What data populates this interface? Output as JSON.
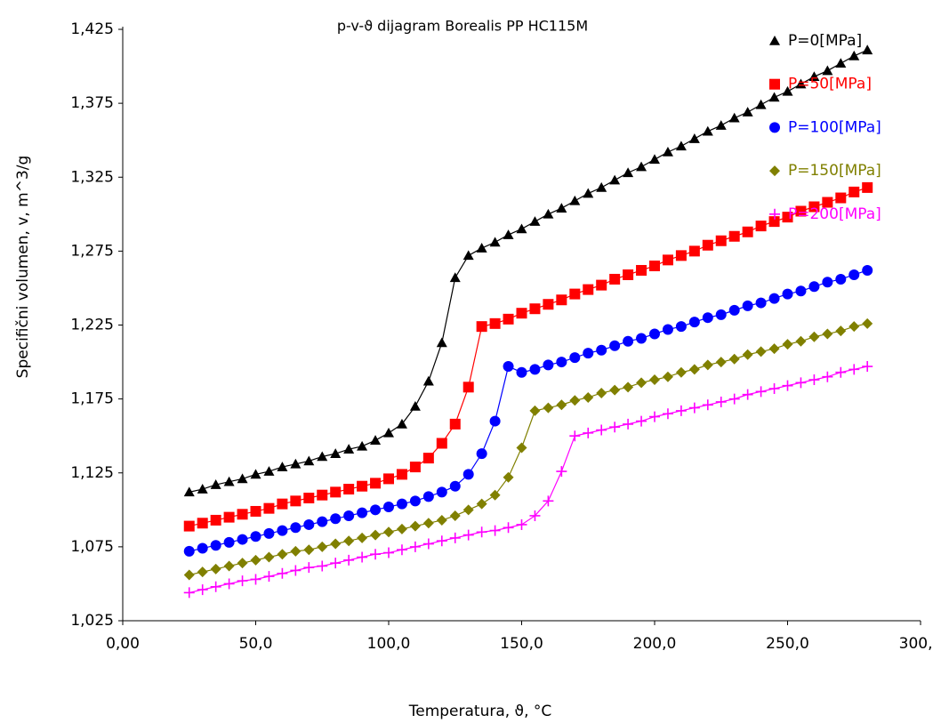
{
  "chart_data": {
    "type": "line",
    "title": "p-v-ϑ  dijagram Borealis PP   HC115M",
    "xlabel": "Temperatura, ϑ, °C",
    "ylabel": "Specifični volumen, v,  m^3/g",
    "x": [
      25,
      30,
      35,
      40,
      45,
      50,
      55,
      60,
      65,
      70,
      75,
      80,
      85,
      90,
      95,
      100,
      105,
      110,
      115,
      120,
      125,
      130,
      135,
      140,
      145,
      150,
      155,
      160,
      165,
      170,
      175,
      180,
      185,
      190,
      195,
      200,
      205,
      210,
      215,
      220,
      225,
      230,
      235,
      240,
      245,
      250,
      255,
      260,
      265,
      270,
      275,
      280
    ],
    "series": [
      {
        "name": "P=0[MPa]",
        "color": "#000000",
        "marker": "triangle",
        "values": [
          1.112,
          1.114,
          1.117,
          1.119,
          1.121,
          1.124,
          1.126,
          1.129,
          1.131,
          1.133,
          1.136,
          1.138,
          1.141,
          1.143,
          1.147,
          1.152,
          1.158,
          1.17,
          1.187,
          1.213,
          1.257,
          1.272,
          1.277,
          1.281,
          1.286,
          1.29,
          1.295,
          1.3,
          1.304,
          1.309,
          1.314,
          1.318,
          1.323,
          1.328,
          1.332,
          1.337,
          1.342,
          1.346,
          1.351,
          1.356,
          1.36,
          1.365,
          1.369,
          1.374,
          1.379,
          1.383,
          1.388,
          1.393,
          1.397,
          1.402,
          1.407,
          1.411
        ]
      },
      {
        "name": "P=50[MPa]",
        "color": "#ff0000",
        "marker": "square",
        "values": [
          1.089,
          1.091,
          1.093,
          1.095,
          1.097,
          1.099,
          1.101,
          1.104,
          1.106,
          1.108,
          1.11,
          1.112,
          1.114,
          1.116,
          1.118,
          1.121,
          1.124,
          1.129,
          1.135,
          1.145,
          1.158,
          1.183,
          1.224,
          1.226,
          1.229,
          1.233,
          1.236,
          1.239,
          1.242,
          1.246,
          1.249,
          1.252,
          1.256,
          1.259,
          1.262,
          1.265,
          1.269,
          1.272,
          1.275,
          1.279,
          1.282,
          1.285,
          1.288,
          1.292,
          1.295,
          1.298,
          1.302,
          1.305,
          1.308,
          1.311,
          1.315,
          1.318
        ]
      },
      {
        "name": "P=100[MPa]",
        "color": "#0000ff",
        "marker": "circle",
        "values": [
          1.072,
          1.074,
          1.076,
          1.078,
          1.08,
          1.082,
          1.084,
          1.086,
          1.088,
          1.09,
          1.092,
          1.094,
          1.096,
          1.098,
          1.1,
          1.102,
          1.104,
          1.106,
          1.109,
          1.112,
          1.116,
          1.124,
          1.138,
          1.16,
          1.197,
          1.193,
          1.195,
          1.198,
          1.2,
          1.203,
          1.206,
          1.208,
          1.211,
          1.214,
          1.216,
          1.219,
          1.222,
          1.224,
          1.227,
          1.23,
          1.232,
          1.235,
          1.238,
          1.24,
          1.243,
          1.246,
          1.248,
          1.251,
          1.254,
          1.256,
          1.259,
          1.262
        ]
      },
      {
        "name": "P=150[MPa]",
        "color": "#808000",
        "marker": "diamond",
        "values": [
          1.056,
          1.058,
          1.06,
          1.062,
          1.064,
          1.066,
          1.068,
          1.07,
          1.072,
          1.073,
          1.075,
          1.077,
          1.079,
          1.081,
          1.083,
          1.085,
          1.087,
          1.089,
          1.091,
          1.093,
          1.096,
          1.1,
          1.104,
          1.11,
          1.122,
          1.142,
          1.167,
          1.169,
          1.171,
          1.174,
          1.176,
          1.179,
          1.181,
          1.183,
          1.186,
          1.188,
          1.19,
          1.193,
          1.195,
          1.198,
          1.2,
          1.202,
          1.205,
          1.207,
          1.209,
          1.212,
          1.214,
          1.217,
          1.219,
          1.221,
          1.224,
          1.226
        ]
      },
      {
        "name": "P=200[MPa]",
        "color": "#ff00ff",
        "marker": "plus",
        "values": [
          1.044,
          1.046,
          1.048,
          1.05,
          1.052,
          1.053,
          1.055,
          1.057,
          1.059,
          1.061,
          1.062,
          1.064,
          1.066,
          1.068,
          1.07,
          1.071,
          1.073,
          1.075,
          1.077,
          1.079,
          1.081,
          1.083,
          1.085,
          1.086,
          1.088,
          1.09,
          1.096,
          1.106,
          1.126,
          1.15,
          1.152,
          1.154,
          1.156,
          1.158,
          1.16,
          1.163,
          1.165,
          1.167,
          1.169,
          1.171,
          1.173,
          1.175,
          1.178,
          1.18,
          1.182,
          1.184,
          1.186,
          1.188,
          1.19,
          1.193,
          1.195,
          1.197
        ]
      }
    ],
    "xlim": [
      0,
      300
    ],
    "xticks": [
      {
        "value": 0,
        "label": "0,00"
      },
      {
        "value": 50,
        "label": "50,0"
      },
      {
        "value": 100,
        "label": "100,0"
      },
      {
        "value": 150,
        "label": "150,0"
      },
      {
        "value": 200,
        "label": "200,0"
      },
      {
        "value": 250,
        "label": "250,0"
      },
      {
        "value": 300,
        "label": "300,0"
      }
    ],
    "ylim": [
      1.025,
      1.425
    ],
    "yticks": [
      {
        "value": 1.025,
        "label": "1,025"
      },
      {
        "value": 1.075,
        "label": "1,075"
      },
      {
        "value": 1.125,
        "label": "1,125"
      },
      {
        "value": 1.175,
        "label": "1,175"
      },
      {
        "value": 1.225,
        "label": "1,225"
      },
      {
        "value": 1.275,
        "label": "1,275"
      },
      {
        "value": 1.325,
        "label": "1,325"
      },
      {
        "value": 1.375,
        "label": "1,375"
      },
      {
        "value": 1.425,
        "label": "1,425"
      }
    ],
    "grid": false,
    "legend": "upper right"
  }
}
